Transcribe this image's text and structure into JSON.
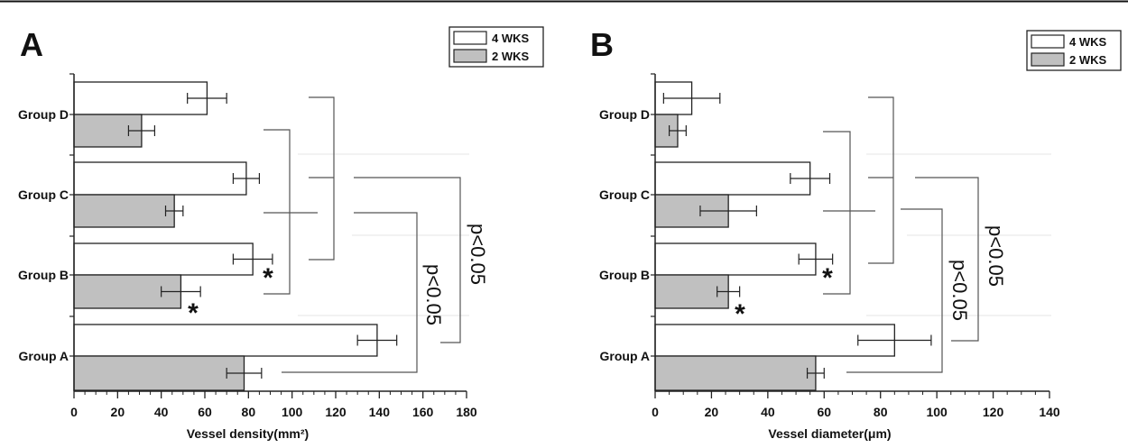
{
  "chart_data": [
    {
      "type": "bar",
      "orientation": "horizontal",
      "panel_label": "A",
      "categories": [
        "Group D",
        "Group C",
        "Group B",
        "Group A"
      ],
      "series": [
        {
          "name": "4 WKS",
          "color": "#ffffff",
          "values": [
            61,
            79,
            82,
            139
          ],
          "errors": [
            9,
            6,
            9,
            9
          ]
        },
        {
          "name": "2 WKS",
          "color": "#c0c0c0",
          "values": [
            31,
            46,
            49,
            78
          ],
          "errors": [
            6,
            4,
            9,
            8
          ]
        }
      ],
      "xlabel": "Vessel density(mm²)",
      "xlim": [
        0,
        180
      ],
      "xticks": [
        "0",
        "20",
        "40",
        "60",
        "80",
        "100",
        "120",
        "140",
        "160",
        "180"
      ],
      "legend": {
        "position": "top-right",
        "entries": [
          "4 WKS",
          "2 WKS"
        ]
      },
      "annotations": [
        {
          "text": "*",
          "category": "Group B",
          "series": "4 WKS"
        },
        {
          "text": "*",
          "category": "Group B",
          "series": "2 WKS"
        },
        {
          "text": "p<0.05",
          "type": "bracket",
          "between": [
            "Group A",
            "Group C"
          ]
        },
        {
          "text": "p<0.05",
          "type": "bracket",
          "between": [
            "Group A",
            "Group C"
          ]
        }
      ],
      "grid": false
    },
    {
      "type": "bar",
      "orientation": "horizontal",
      "panel_label": "B",
      "categories": [
        "Group D",
        "Group C",
        "Group B",
        "Group A"
      ],
      "series": [
        {
          "name": "4 WKS",
          "color": "#ffffff",
          "values": [
            13,
            55,
            57,
            85
          ],
          "errors": [
            10,
            7,
            6,
            13
          ]
        },
        {
          "name": "2 WKS",
          "color": "#c0c0c0",
          "values": [
            8,
            26,
            26,
            57
          ],
          "errors": [
            3,
            10,
            4,
            3
          ]
        }
      ],
      "xlabel": "Vessel diameter(μm)",
      "xlim": [
        0,
        140
      ],
      "xticks": [
        "0",
        "20",
        "40",
        "60",
        "80",
        "100",
        "120",
        "140"
      ],
      "legend": {
        "position": "top-right",
        "entries": [
          "4 WKS",
          "2 WKS"
        ]
      },
      "annotations": [
        {
          "text": "*",
          "category": "Group B",
          "series": "4 WKS"
        },
        {
          "text": "*",
          "category": "Group B",
          "series": "2 WKS"
        },
        {
          "text": "p<0.05",
          "type": "bracket",
          "between": [
            "Group A",
            "Group C"
          ]
        },
        {
          "text": "p<0.05",
          "type": "bracket",
          "between": [
            "Group A",
            "Group C"
          ]
        }
      ],
      "grid": false
    }
  ]
}
